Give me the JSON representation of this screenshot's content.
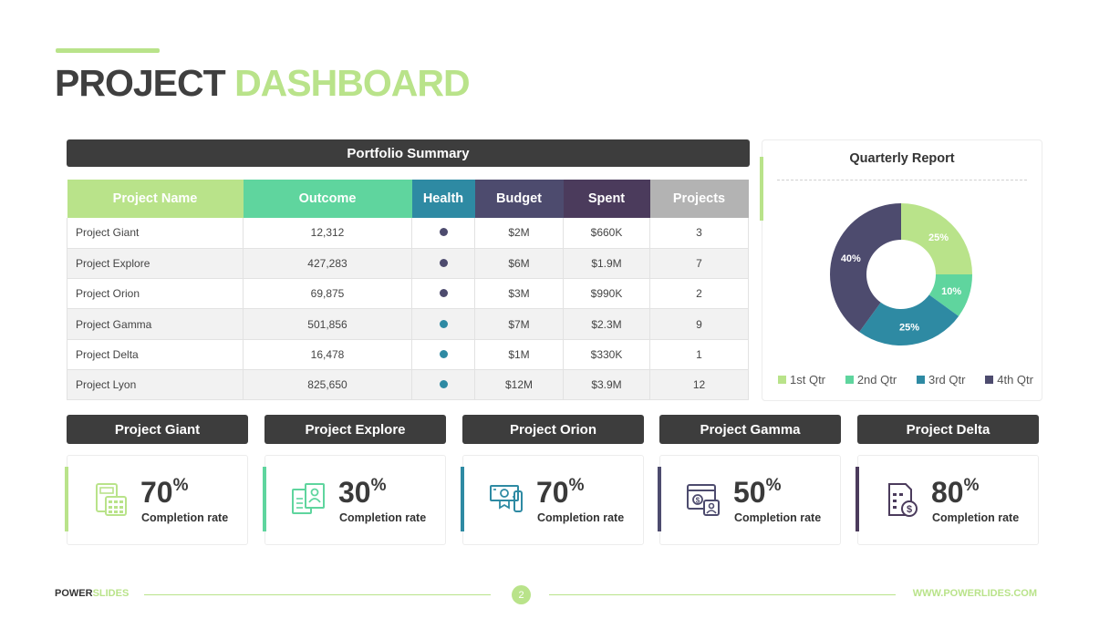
{
  "page": {
    "title_part1": "PROJECT",
    "title_part2": "DASHBOARD"
  },
  "colors": {
    "green": "#b9e38a",
    "mint": "#5fd59e",
    "teal": "#2e8aa3",
    "navy": "#4d4b6e",
    "plum": "#4b3b5c",
    "gray": "#b3b3b3",
    "dark": "#3d3d3d"
  },
  "portfolio": {
    "title": "Portfolio Summary",
    "columns": [
      {
        "label": "Project Name",
        "color": "#b9e38a"
      },
      {
        "label": "Outcome",
        "color": "#5fd59e"
      },
      {
        "label": "Health",
        "color": "#2e8aa3"
      },
      {
        "label": "Budget",
        "color": "#4d4b6e"
      },
      {
        "label": "Spent",
        "color": "#4b3b5c"
      },
      {
        "label": "Projects",
        "color": "#b3b3b3"
      }
    ],
    "rows": [
      {
        "name": "Project Giant",
        "outcome": "12,312",
        "health_color": "#4d4b6e",
        "budget": "$2M",
        "spent": "$660K",
        "projects": "3"
      },
      {
        "name": "Project Explore",
        "outcome": "427,283",
        "health_color": "#4d4b6e",
        "budget": "$6M",
        "spent": "$1.9M",
        "projects": "7"
      },
      {
        "name": "Project Orion",
        "outcome": "69,875",
        "health_color": "#4d4b6e",
        "budget": "$3M",
        "spent": "$990K",
        "projects": "2"
      },
      {
        "name": "Project Gamma",
        "outcome": "501,856",
        "health_color": "#2e8aa3",
        "budget": "$7M",
        "spent": "$2.3M",
        "projects": "9"
      },
      {
        "name": "Project Delta",
        "outcome": "16,478",
        "health_color": "#2e8aa3",
        "budget": "$1M",
        "spent": "$330K",
        "projects": "1"
      },
      {
        "name": "Project Lyon",
        "outcome": "825,650",
        "health_color": "#2e8aa3",
        "budget": "$12M",
        "spent": "$3.9M",
        "projects": "12"
      }
    ]
  },
  "chart_data": {
    "type": "pie",
    "title": "Quarterly Report",
    "categories": [
      "1st Qtr",
      "2nd Qtr",
      "3rd Qtr",
      "4th Qtr"
    ],
    "values": [
      25,
      10,
      25,
      40
    ],
    "labels": [
      "25%",
      "10%",
      "25%",
      "40%"
    ],
    "colors": [
      "#b9e38a",
      "#5fd59e",
      "#2e8aa3",
      "#4d4b6e"
    ],
    "label_colors": [
      "#ffffff",
      "#ffffff",
      "#ffffff",
      "#ffffff"
    ],
    "donut": true,
    "legend_position": "bottom"
  },
  "projects": [
    {
      "name": "Project Giant",
      "percent": "70",
      "percent_sign": "%",
      "label": "Completion rate",
      "color": "#b9e38a",
      "icon": "calculator-icon"
    },
    {
      "name": "Project Explore",
      "percent": "30",
      "percent_sign": "%",
      "label": "Completion rate",
      "color": "#5fd59e",
      "icon": "documents-user-icon"
    },
    {
      "name": "Project Orion",
      "percent": "70",
      "percent_sign": "%",
      "label": "Completion rate",
      "color": "#2e8aa3",
      "icon": "money-bill-icon"
    },
    {
      "name": "Project Gamma",
      "percent": "50",
      "percent_sign": "%",
      "label": "Completion rate",
      "color": "#4d4b6e",
      "icon": "browser-payment-icon"
    },
    {
      "name": "Project Delta",
      "percent": "80",
      "percent_sign": "%",
      "label": "Completion rate",
      "color": "#4b3b5c",
      "icon": "invoice-dollar-icon"
    }
  ],
  "footer": {
    "brand_part1": "POWER",
    "brand_part2": "SLIDES",
    "page_number": "2",
    "url": "WWW.POWERLIDES.COM"
  }
}
